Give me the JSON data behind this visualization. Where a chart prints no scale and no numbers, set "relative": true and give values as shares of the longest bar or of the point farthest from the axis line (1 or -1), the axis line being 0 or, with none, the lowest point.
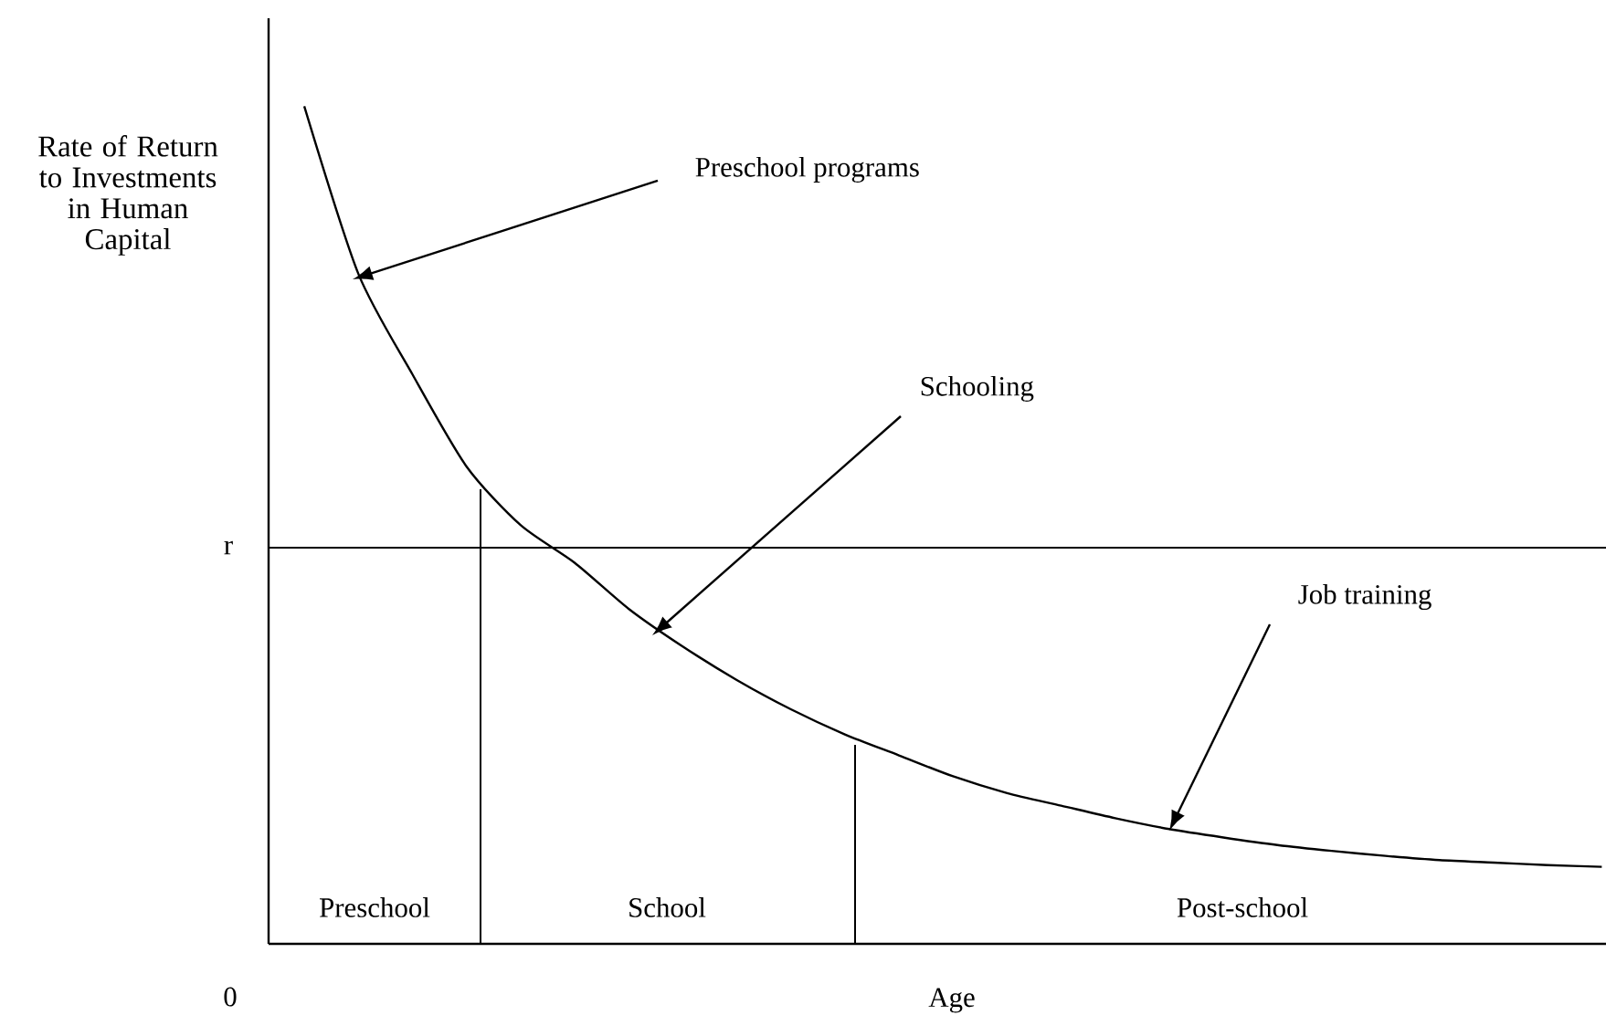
{
  "chart_data": {
    "type": "line",
    "relative": true,
    "xlabel": "Age",
    "ylabel": "Rate of Return to Investments in Human Capital",
    "categories": [
      null,
      null,
      null,
      null,
      null,
      null,
      null,
      null,
      null,
      null,
      null,
      null,
      null,
      null,
      null,
      null,
      null,
      null,
      null,
      null,
      null,
      null,
      null,
      null,
      null
    ],
    "series": [
      {
        "color": "#000000",
        "values": [
          1.0,
          0.8,
          0.68,
          0.57,
          0.5,
          0.455,
          0.4,
          0.355,
          0.315,
          0.28,
          0.25,
          0.225,
          0.2,
          0.18,
          0.165,
          0.15,
          0.137,
          0.127,
          0.118,
          0.111,
          0.105,
          0.1,
          0.097,
          0.094,
          0.092
        ]
      }
    ],
    "ref_lines": [
      {
        "axis": "y",
        "value": 0.473,
        "label": "r"
      }
    ],
    "annotations": [
      "Preschool programs",
      "Schooling",
      "Job training",
      "0",
      "Preschool",
      "School",
      "Post-school"
    ]
  }
}
